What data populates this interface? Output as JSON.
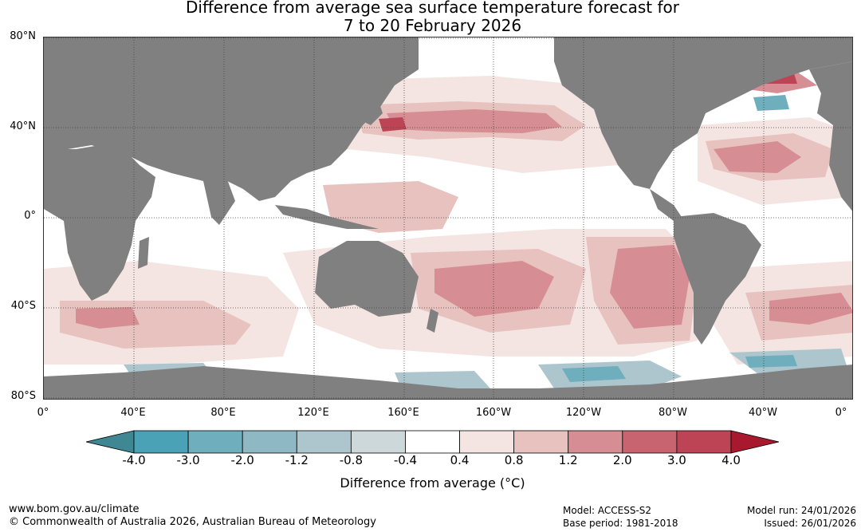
{
  "title": {
    "line1": "Difference from average sea surface temperature forecast for",
    "line2": "7 to 20 February 2026"
  },
  "lat_labels": [
    "80°N",
    "40°N",
    "0°",
    "40°S",
    "80°S"
  ],
  "lon_labels": [
    "0°",
    "40°E",
    "80°E",
    "120°E",
    "160°E",
    "160°W",
    "120°W",
    "80°W",
    "40°W",
    "0°"
  ],
  "colorbar": {
    "ticks": [
      "-4.0",
      "-3.0",
      "-2.0",
      "-1.2",
      "-0.8",
      "-0.4",
      "0.4",
      "0.8",
      "1.2",
      "2.0",
      "3.0",
      "4.0"
    ],
    "colors": [
      "#3f8893",
      "#4aa2b6",
      "#6eaebd",
      "#8fb8c5",
      "#adc6cd",
      "#cdd8da",
      "#ffffff",
      "#f4e5e3",
      "#e7c2be",
      "#d68d94",
      "#c86470",
      "#bd4455",
      "#a8192e"
    ],
    "label": "Difference from average (°C)"
  },
  "colors": {
    "land": "#808080",
    "grid": "#444444"
  },
  "footer": {
    "website": "www.bom.gov.au/climate",
    "copyright": "© Commonwealth of Australia 2026, Australian Bureau of Meteorology",
    "model": "Model: ACCESS-S2",
    "base_period": "Base period: 1981-2018",
    "model_run": "Model run: 24/01/2026",
    "issued": "Issued: 26/01/2026"
  }
}
